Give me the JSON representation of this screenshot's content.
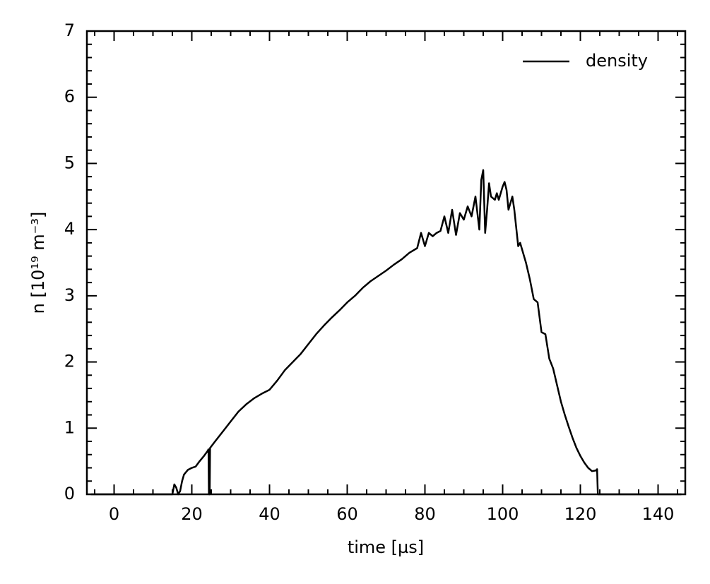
{
  "chart_data": {
    "type": "line",
    "xlabel": "time [µs]",
    "ylabel": "n [10¹⁹ m⁻³]",
    "xlim": [
      -7,
      147
    ],
    "xticks": [
      0,
      20,
      40,
      60,
      80,
      100,
      120,
      140
    ],
    "xminor": [
      -5,
      5,
      10,
      15,
      25,
      30,
      35,
      45,
      50,
      55,
      65,
      70,
      75,
      85,
      90,
      95,
      105,
      110,
      115,
      125,
      130,
      135,
      145
    ],
    "ylim": [
      0,
      7
    ],
    "yticks": [
      0,
      1,
      2,
      3,
      4,
      5,
      6,
      7
    ],
    "yminor": [
      0.2,
      0.4,
      0.6,
      0.8,
      1.2,
      1.4,
      1.6,
      1.8,
      2.2,
      2.4,
      2.6,
      2.8,
      3.2,
      3.4,
      3.6,
      3.8,
      4.2,
      4.4,
      4.6,
      4.8,
      5.2,
      5.4,
      5.6,
      5.8,
      6.2,
      6.4,
      6.6,
      6.8
    ],
    "legend": "upper right",
    "x": [
      -6,
      15,
      15.5,
      16,
      16.5,
      17,
      17.5,
      18,
      19,
      20,
      21,
      22,
      23,
      24,
      24.3,
      24.4,
      24.6,
      24.7,
      26,
      28,
      30,
      32,
      34,
      36,
      38,
      40,
      42,
      44,
      46,
      48,
      50,
      52,
      54,
      56,
      58,
      60,
      62,
      64,
      66,
      68,
      70,
      72,
      74,
      76,
      78,
      79,
      80,
      81,
      82,
      83,
      84,
      85,
      86,
      87,
      88,
      89,
      90,
      91,
      92,
      93,
      94,
      94.5,
      95,
      95.5,
      96,
      96.5,
      97,
      98,
      98.5,
      99,
      100,
      100.5,
      101,
      101.5,
      102,
      102.5,
      103,
      104,
      104.5,
      105,
      106,
      107,
      108,
      109,
      110,
      111,
      112,
      113,
      114,
      115,
      116,
      117,
      118,
      119,
      120,
      121,
      122,
      123,
      124,
      124.3,
      124.5,
      146
    ],
    "series": [
      {
        "name": "density",
        "color": "#000000",
        "values": [
          0,
          0,
          0.15,
          0.1,
          0,
          0.05,
          0.2,
          0.3,
          0.37,
          0.4,
          0.42,
          0.5,
          0.57,
          0.65,
          0.68,
          0,
          0,
          0.7,
          0.8,
          0.95,
          1.1,
          1.25,
          1.36,
          1.45,
          1.52,
          1.58,
          1.72,
          1.88,
          2.0,
          2.12,
          2.27,
          2.42,
          2.55,
          2.67,
          2.78,
          2.9,
          3.0,
          3.12,
          3.22,
          3.3,
          3.38,
          3.47,
          3.55,
          3.65,
          3.72,
          3.95,
          3.75,
          3.95,
          3.9,
          3.95,
          3.98,
          4.2,
          3.95,
          4.3,
          3.92,
          4.25,
          4.15,
          4.35,
          4.2,
          4.5,
          4.0,
          4.75,
          4.9,
          3.95,
          4.3,
          4.7,
          4.5,
          4.45,
          4.55,
          4.45,
          4.65,
          4.72,
          4.6,
          4.3,
          4.4,
          4.5,
          4.3,
          3.75,
          3.8,
          3.7,
          3.5,
          3.25,
          2.95,
          2.9,
          2.45,
          2.42,
          2.05,
          1.9,
          1.65,
          1.4,
          1.2,
          1.02,
          0.85,
          0.7,
          0.58,
          0.48,
          0.4,
          0.35,
          0.36,
          0.38,
          0,
          0
        ]
      }
    ]
  }
}
